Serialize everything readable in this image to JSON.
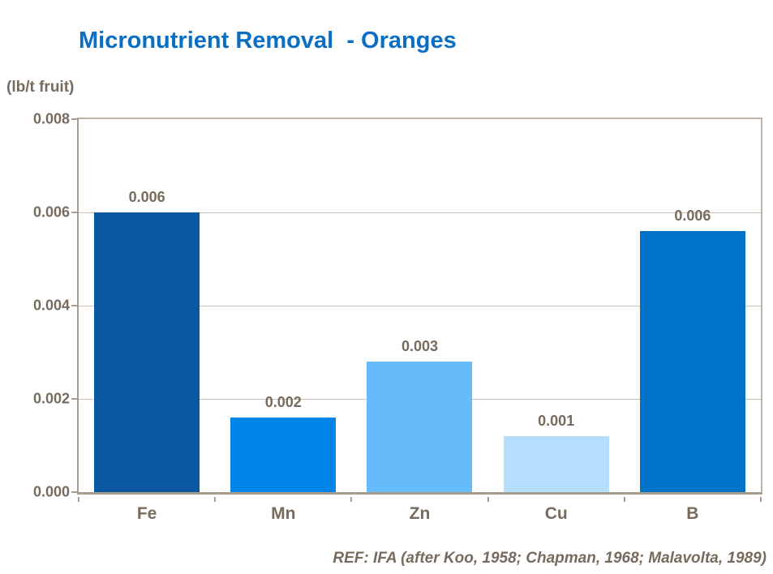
{
  "chart_data": {
    "type": "bar",
    "title": "Micronutrient Removal  - Oranges",
    "unit_label": "(lb/t fruit)",
    "categories": [
      "Fe",
      "Mn",
      "Zn",
      "Cu",
      "B"
    ],
    "values": [
      0.006,
      0.0016,
      0.0028,
      0.0012,
      0.0056
    ],
    "data_labels": [
      "0.006",
      "0.002",
      "0.003",
      "0.001",
      "0.006"
    ],
    "bar_colors": [
      "#0B58A2",
      "#0084E8",
      "#66BBFA",
      "#B5DEFC",
      "#0073C8"
    ],
    "ylim": [
      0,
      0.008
    ],
    "ytick_values": [
      0.008,
      0.006,
      0.004,
      0.002,
      0.0
    ],
    "ytick_labels": [
      "0.008",
      "0.006",
      "0.004",
      "0.002",
      "0.000"
    ],
    "grid": true,
    "legend": false,
    "title_color": "#0A6EC3",
    "text_color": "#776B5E",
    "grid_color": "#C9C0B7",
    "plot_border_color": "#BEB3A8",
    "axis_color": "#A79C90",
    "reference": "REF: IFA (after Koo, 1958; Chapman, 1968; Malavolta, 1989)"
  }
}
